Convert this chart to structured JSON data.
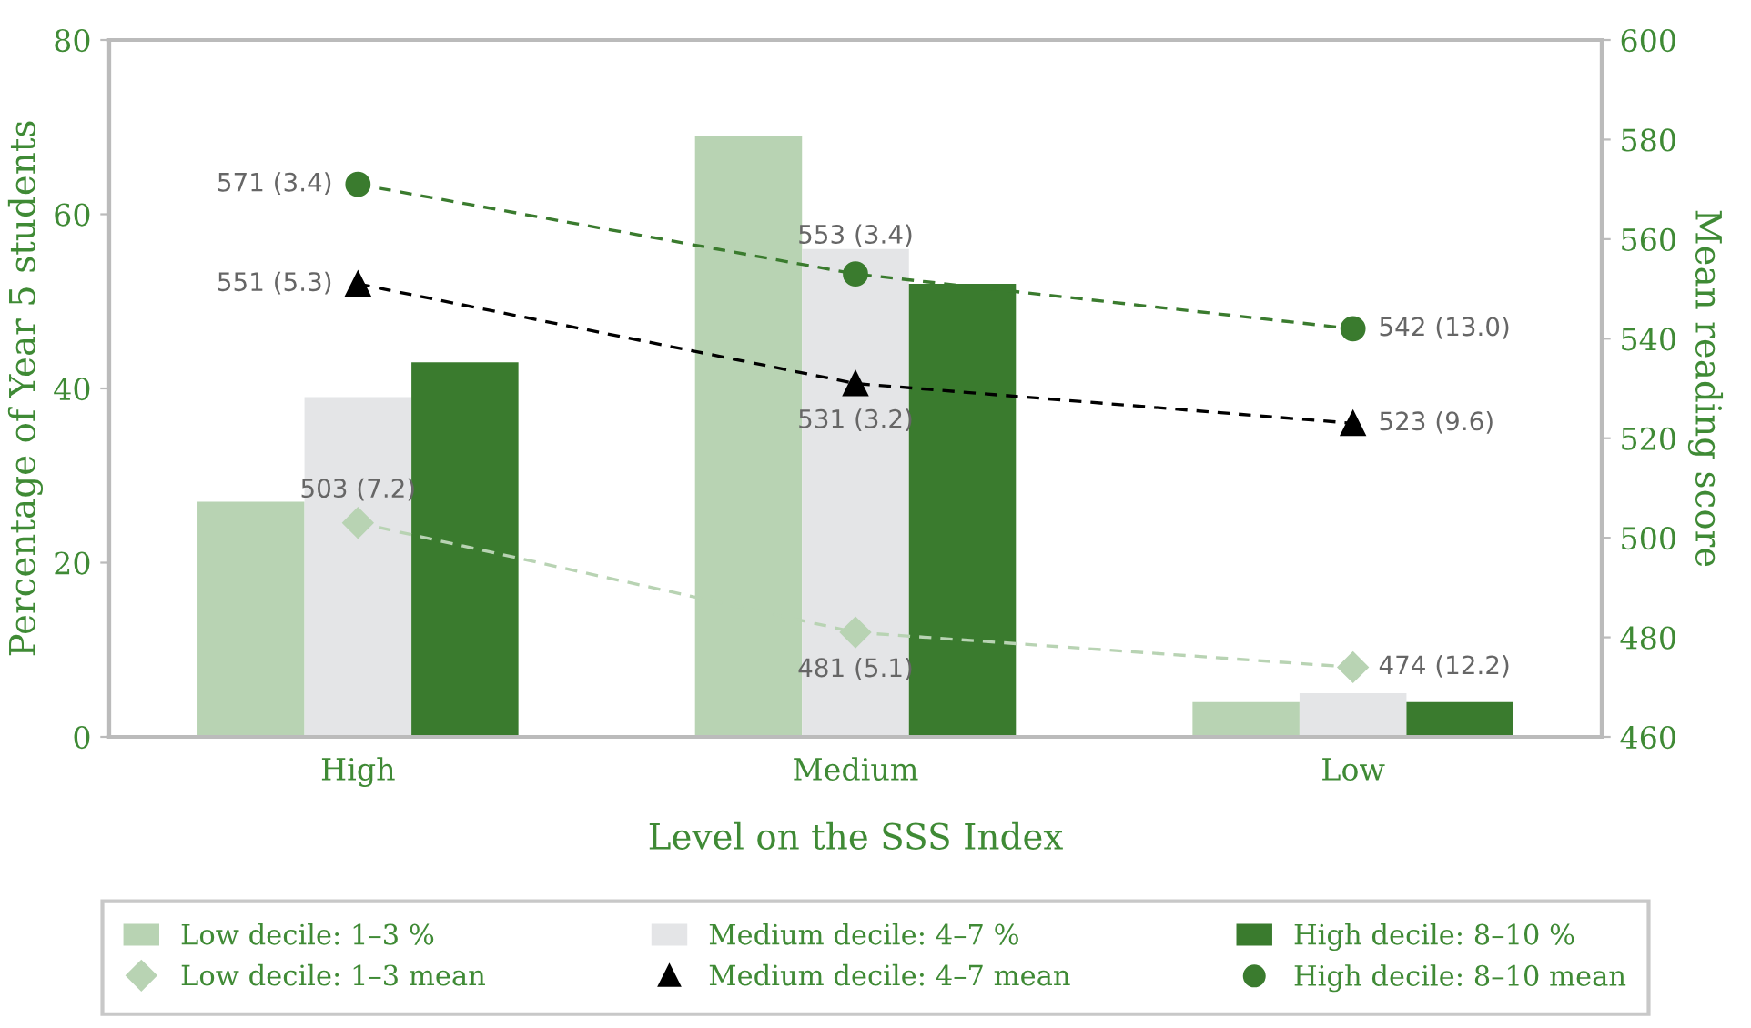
{
  "chart_data": {
    "type": "bar",
    "xlabel": "Level on the SSS Index",
    "ylabel": "Percentage of Year 5 students",
    "y2label": "Mean reading score",
    "categories": [
      "High",
      "Medium",
      "Low"
    ],
    "series": [
      {
        "name": "Low decile: 1–3 %",
        "color": "#b8d3b3",
        "values": [
          27,
          69,
          4
        ]
      },
      {
        "name": "Medium decile: 4–7 %",
        "color": "#e4e5e7",
        "values": [
          39,
          56,
          5
        ]
      },
      {
        "name": "High decile: 8–10 %",
        "color": "#3a7b2e",
        "values": [
          43,
          52,
          4
        ]
      },
      {
        "name": "Low decile: 1–3 mean",
        "type": "line",
        "axis": "y2",
        "color": "#b8d3b3",
        "marker": "diamond",
        "line_style": "dashed",
        "values": [
          503,
          481,
          474
        ],
        "value_labels": [
          "503 (7.2)",
          "481 (5.1)",
          "474 (12.2)"
        ]
      },
      {
        "name": "Medium decile: 4–7 mean",
        "type": "line",
        "axis": "y2",
        "color": "#000000",
        "marker": "triangle",
        "line_style": "dashed",
        "values": [
          551,
          531,
          523
        ],
        "value_labels": [
          "551 (5.3)",
          "531 (3.2)",
          "523 (9.6)"
        ]
      },
      {
        "name": "High decile: 8–10 mean",
        "type": "line",
        "axis": "y2",
        "color": "#3a7b2e",
        "marker": "circle",
        "line_style": "dashed",
        "values": [
          571,
          553,
          542
        ],
        "value_labels": [
          "571 (3.4)",
          "553 (3.4)",
          "542 (13.0)"
        ]
      }
    ],
    "ylim": [
      0,
      80
    ],
    "yticks": [
      0,
      20,
      40,
      60,
      80
    ],
    "y2lim": [
      460,
      600
    ],
    "y2ticks": [
      460,
      480,
      500,
      520,
      540,
      560,
      580,
      600
    ],
    "grid": false,
    "legend": "bottom"
  }
}
